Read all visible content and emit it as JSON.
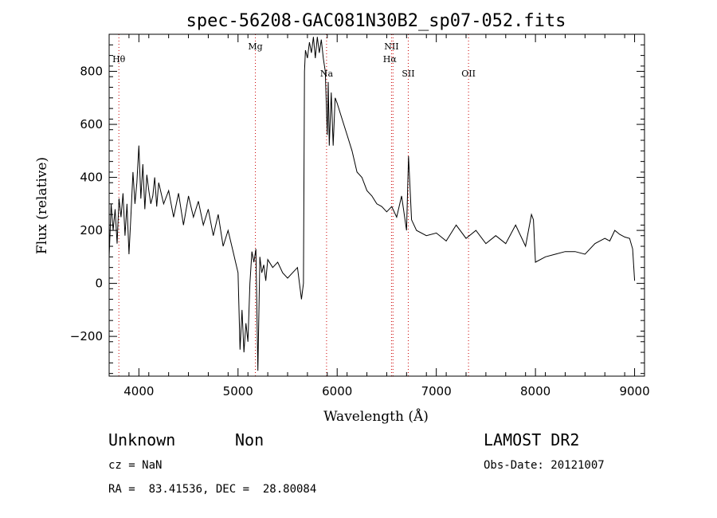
{
  "chart_data": {
    "type": "line",
    "title": "spec-56208-GAC081N30B2_sp07-052.fits",
    "xlabel": "Wavelength (Å)",
    "ylabel": "Flux (relative)",
    "xlim": [
      3700,
      9100
    ],
    "ylim": [
      -350,
      940
    ],
    "x_ticks": [
      4000,
      5000,
      6000,
      7000,
      8000,
      9000
    ],
    "y_ticks": [
      -200,
      0,
      200,
      400,
      600,
      800
    ],
    "grid": false,
    "line_color": "#000000",
    "marker_color": "#cc0000",
    "spectral_lines": [
      {
        "name": "Hθ",
        "wavelength": 3798
      },
      {
        "name": "Mg",
        "wavelength": 5175
      },
      {
        "name": "Na",
        "wavelength": 5893
      },
      {
        "name": "NII",
        "wavelength": 6548
      },
      {
        "name": "Hα",
        "wavelength": 6563
      },
      {
        "name": "SII",
        "wavelength": 6717
      },
      {
        "name": "OII",
        "wavelength": 7325
      }
    ],
    "series": [
      {
        "x": [
          3700,
          3720,
          3740,
          3760,
          3780,
          3800,
          3820,
          3840,
          3860,
          3880,
          3900,
          3920,
          3940,
          3960,
          3980,
          4000,
          4020,
          4040,
          4060,
          4080,
          4100,
          4120,
          4140,
          4160,
          4180,
          4200,
          4250,
          4300,
          4350,
          4400,
          4450,
          4500,
          4550,
          4600,
          4650,
          4700,
          4750,
          4800,
          4850,
          4900,
          4950,
          5000,
          5020,
          5040,
          5060,
          5080,
          5100,
          5120,
          5140,
          5160,
          5180,
          5200,
          5220,
          5240,
          5260,
          5280,
          5300,
          5350,
          5400,
          5450,
          5500,
          5550,
          5600,
          5640,
          5660,
          5670,
          5680,
          5700,
          5720,
          5740,
          5760,
          5780,
          5800,
          5820,
          5840,
          5860,
          5880,
          5900,
          5910,
          5920,
          5940,
          5960,
          5980,
          6000,
          6050,
          6100,
          6150,
          6200,
          6250,
          6300,
          6350,
          6400,
          6450,
          6500,
          6550,
          6600,
          6650,
          6700,
          6720,
          6750,
          6800,
          6900,
          7000,
          7100,
          7200,
          7300,
          7400,
          7500,
          7600,
          7700,
          7800,
          7900,
          7960,
          7980,
          8000,
          8100,
          8200,
          8300,
          8400,
          8500,
          8600,
          8700,
          8750,
          8800,
          8850,
          8900,
          8950,
          8980,
          9000
        ],
        "y": [
          100,
          300,
          200,
          280,
          150,
          320,
          250,
          340,
          180,
          300,
          110,
          260,
          420,
          300,
          380,
          520,
          320,
          450,
          280,
          410,
          350,
          300,
          330,
          400,
          290,
          380,
          300,
          350,
          250,
          340,
          220,
          330,
          250,
          310,
          220,
          280,
          180,
          260,
          140,
          200,
          120,
          40,
          -250,
          -100,
          -260,
          -150,
          -220,
          0,
          120,
          80,
          130,
          -330,
          100,
          40,
          70,
          10,
          90,
          60,
          80,
          40,
          20,
          40,
          60,
          -60,
          0,
          800,
          880,
          850,
          910,
          870,
          930,
          850,
          930,
          870,
          920,
          850,
          800,
          560,
          760,
          520,
          720,
          520,
          700,
          680,
          620,
          560,
          500,
          420,
          400,
          350,
          330,
          300,
          290,
          270,
          290,
          250,
          330,
          200,
          480,
          240,
          200,
          180,
          190,
          160,
          220,
          170,
          200,
          150,
          180,
          150,
          220,
          140,
          260,
          240,
          80,
          100,
          110,
          120,
          120,
          110,
          150,
          170,
          160,
          200,
          185,
          175,
          170,
          130,
          10
        ]
      }
    ]
  },
  "info": {
    "class_label": "Unknown",
    "subclass_label": "Non",
    "survey": "LAMOST DR2",
    "cz": "cz = NaN",
    "obs_date": "Obs-Date: 20121007",
    "coords": "RA =  83.41536, DEC =  28.80084"
  }
}
